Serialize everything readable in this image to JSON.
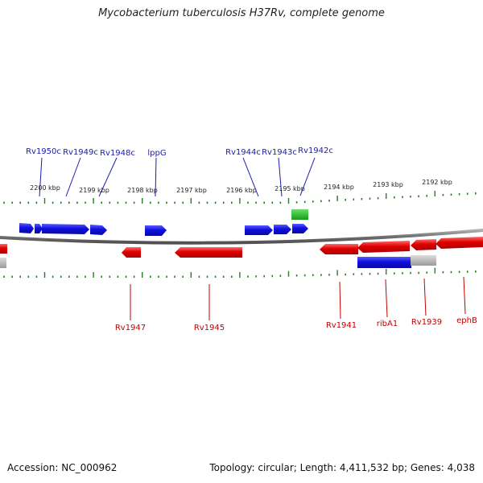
{
  "title": "Mycobacterium tuberculosis H37Rv, complete genome",
  "footer": {
    "accession": "Accession: NC_000962",
    "summary": "Topology: circular; Length: 4,411,532 bp; Genes: 4,038"
  },
  "colors": {
    "forward_gene": "#e00000",
    "reverse_gene": "#1010e0",
    "rna_gene": "#22c022",
    "other_feature": "#b0b0b0",
    "ruler_tick": "#2a7a2a",
    "backbone": "#808080",
    "label_blue": "#1a1ab0",
    "label_red": "#c40000"
  },
  "ruler_labels": [
    "2200 kbp",
    "2199 kbp",
    "2198 kbp",
    "2197 kbp",
    "2196 kbp",
    "2195 kbp",
    "2194 kbp",
    "2193 kbp",
    "2192 kbp"
  ],
  "gene_labels_top": [
    "Rv1950c",
    "Rv1949c",
    "Rv1948c",
    "lppG",
    "Rv1944c",
    "Rv1943c",
    "Rv1942c"
  ],
  "gene_labels_bottom": [
    "Rv1947",
    "Rv1945",
    "Rv1941",
    "ribA1",
    "Rv1939",
    "ephB"
  ]
}
